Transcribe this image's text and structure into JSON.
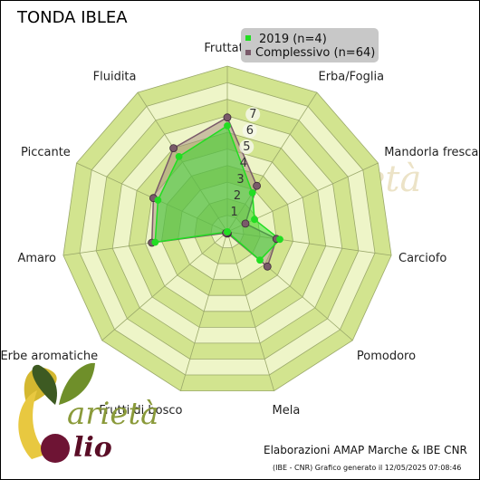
{
  "title": "TONDA IBLEA",
  "colors": {
    "ring_dark": "#d2e48f",
    "ring_light": "#eef5c8",
    "grid": "#9aa86a",
    "series_2019": "#22dd22",
    "series_complessivo": "#7a5a6a",
    "fill_complessivo": "#a68d7e",
    "legend_bg": "#c8c8c8"
  },
  "chart_data": {
    "type": "radar",
    "categories": [
      "Fruttato",
      "Erba/Foglia",
      "Mandorla fresca",
      "Carciofo",
      "Pomodoro",
      "Mela",
      "Frutti di bosco",
      "Erbe aromatiche",
      "Amaro",
      "Piccante",
      "Fluidita"
    ],
    "ticks": [
      "1",
      "2",
      "3",
      "4",
      "5",
      "6",
      "7"
    ],
    "range": [
      0,
      10
    ],
    "series": [
      {
        "name": "2019 (n=4)",
        "values": [
          6.4,
          2.8,
          1.8,
          3.2,
          2.6,
          0.0,
          0.0,
          0.0,
          4.4,
          4.6,
          5.4
        ]
      },
      {
        "name": "Complessivo (n=64)",
        "values": [
          6.9,
          3.3,
          1.2,
          3.0,
          3.2,
          0.1,
          0.1,
          0.1,
          4.6,
          4.9,
          6.0
        ]
      }
    ]
  },
  "legend": {
    "entries": [
      "2019 (n=4)",
      "Complessivo (n=64)"
    ]
  },
  "logo": {
    "word1": "arietà",
    "word2": "lio"
  },
  "footer": {
    "credit": "Elaborazioni AMAP Marche & IBE CNR",
    "generated": "(IBE - CNR) Grafico generato il 12/05/2025 07:08:46"
  }
}
